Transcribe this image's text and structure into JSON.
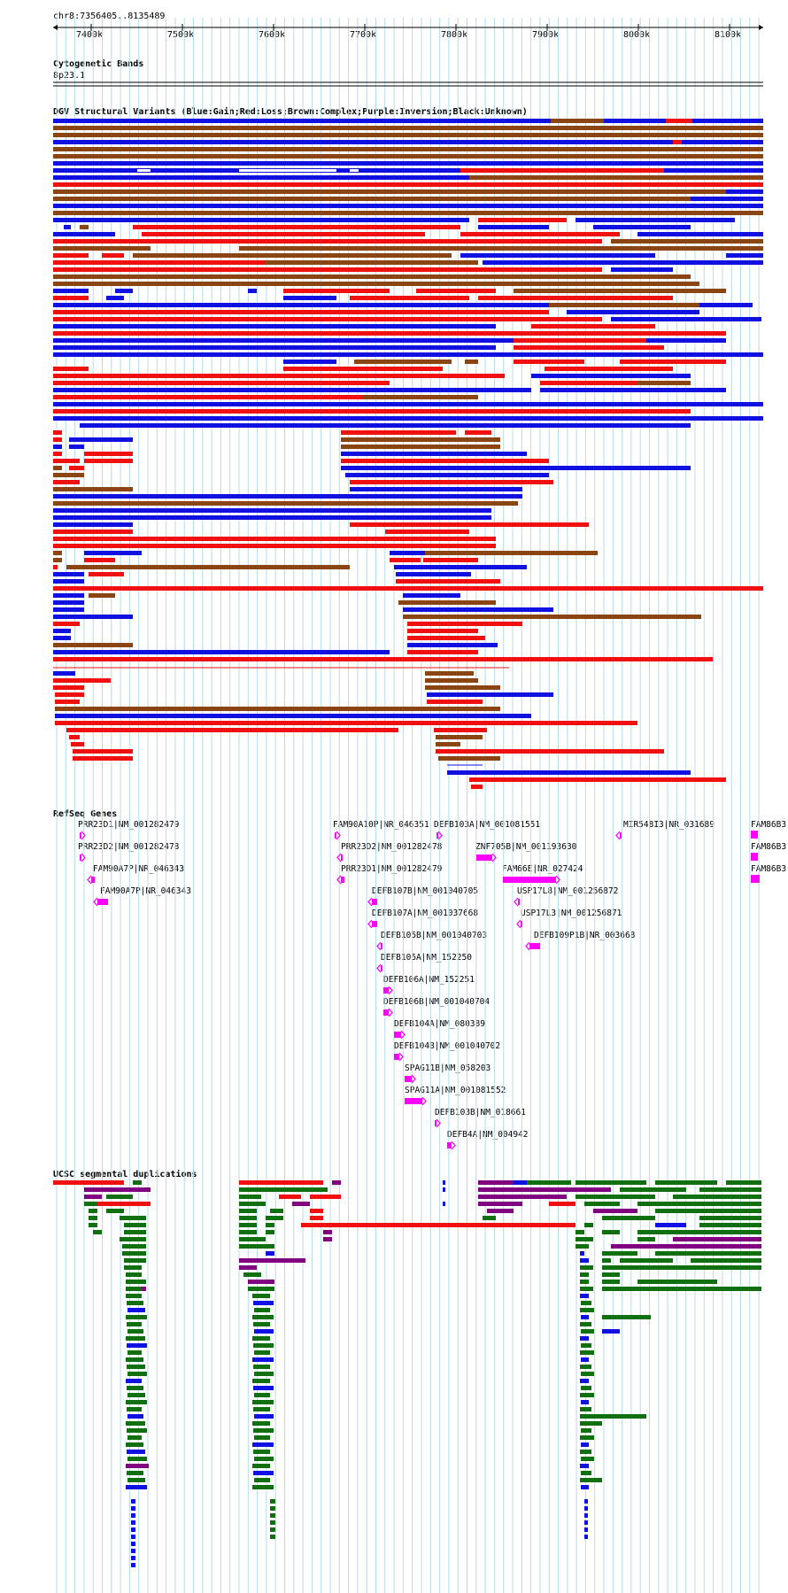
{
  "ruler": {
    "location": "chr8:7356405..8135489",
    "ticks": [
      "7400k",
      "7500k",
      "7600k",
      "7700k",
      "7800k",
      "7900k",
      "8000k",
      "8100k"
    ]
  },
  "tracks": {
    "cytoband": {
      "title": "Cytogenetic Bands",
      "band": "8p23.1"
    },
    "dgv": {
      "title": "DGV Structural Variants (Blue:Gain;Red:Loss;Brown:Complex;Purple:Inversion;Black:Unknown)"
    },
    "refseq": {
      "title": "RefSeq Genes"
    },
    "segdup": {
      "title": "UCSC segmental duplications"
    }
  },
  "colors": {
    "gain": "#1010e0",
    "loss": "#f01010",
    "complex": "#8b4513",
    "inversion": "#800080",
    "gene": "#ff00ff",
    "segdup_green": "#107010",
    "grid": "#b4dcec"
  },
  "genes": [
    "PRR23D1|NM_001282479",
    "PRR23D2|NM_001282478",
    "FAM90A7P|NR_046343",
    "FAM90A7P|NR_046343",
    "FAM90A10P|NR_046351",
    "DEFB103A|NM_001081551",
    "MIR548I3|NR_031689",
    "FAM86B3",
    "PRR23D2|NM_001282478",
    "ZNF705B|NM_001193630",
    "FAM86B3",
    "PRR23D1|NM_001282479",
    "FAM66E|NR_027424",
    "FAM86B3",
    "DEFB107B|NM_001040705",
    "USP17L8|NM_001256872",
    "DEFB107A|NM_001037668",
    "USP17L3|NM_001256871",
    "DEFB105B|NM_001040703",
    "DEFB109P1B|NR_003668",
    "DEFB105A|NM_152250",
    "DEFB106A|NM_152251",
    "DEFB106B|NM_001040704",
    "DEFB104A|NM_080389",
    "DEFB104B|NM_001040702",
    "SPAG11B|NM_058203",
    "SPAG11A|NM_001081552",
    "DEFB103B|NM_018661",
    "DEFB4A|NM_004942"
  ]
}
